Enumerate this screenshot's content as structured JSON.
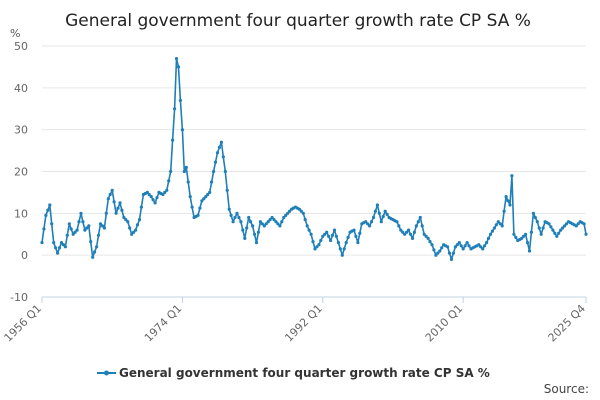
{
  "page": {
    "source_label": "Source:"
  },
  "chart_data": {
    "type": "line",
    "title": "General government four quarter growth rate CP SA %",
    "ylabel": "%",
    "xlabel": "",
    "ylim": [
      -10,
      50
    ],
    "yticks": [
      -10,
      0,
      10,
      20,
      30,
      40,
      50
    ],
    "x_start": "1956 Q1",
    "x_end": "2025 Q4",
    "xtick_labels": [
      "1956 Q1",
      "1974 Q1",
      "1992 Q1",
      "2010 Q1",
      "2025 Q4"
    ],
    "legend_position": "bottom-center",
    "grid": true,
    "color": "#1f7fb8",
    "series": [
      {
        "name": "General government four quarter growth rate CP SA %",
        "anchors": [
          [
            "1956Q1",
            3
          ],
          [
            "1956Q3",
            9.5
          ],
          [
            "1957Q1",
            12
          ],
          [
            "1957Q3",
            3
          ],
          [
            "1958Q1",
            0.5
          ],
          [
            "1958Q3",
            3
          ],
          [
            "1959Q1",
            2
          ],
          [
            "1959Q3",
            7.5
          ],
          [
            "1960Q1",
            5
          ],
          [
            "1960Q3",
            6
          ],
          [
            "1961Q1",
            10
          ],
          [
            "1961Q3",
            6
          ],
          [
            "1962Q1",
            7
          ],
          [
            "1962Q3",
            -0.5
          ],
          [
            "1963Q1",
            2
          ],
          [
            "1963Q3",
            7.5
          ],
          [
            "1964Q1",
            6.5
          ],
          [
            "1964Q3",
            13.5
          ],
          [
            "1965Q1",
            15.5
          ],
          [
            "1965Q3",
            10
          ],
          [
            "1966Q1",
            12.5
          ],
          [
            "1966Q3",
            9
          ],
          [
            "1967Q1",
            8
          ],
          [
            "1967Q3",
            5
          ],
          [
            "1968Q1",
            6
          ],
          [
            "1968Q3",
            8.5
          ],
          [
            "1969Q1",
            14.5
          ],
          [
            "1969Q3",
            15
          ],
          [
            "1970Q1",
            14
          ],
          [
            "1970Q3",
            12.5
          ],
          [
            "1971Q1",
            15
          ],
          [
            "1971Q3",
            14.5
          ],
          [
            "1972Q1",
            15.5
          ],
          [
            "1972Q3",
            20
          ],
          [
            "1973Q1",
            35
          ],
          [
            "1973Q2",
            47
          ],
          [
            "1973Q3",
            45
          ],
          [
            "1973Q4",
            37
          ],
          [
            "1974Q1",
            30
          ],
          [
            "1974Q2",
            20
          ],
          [
            "1974Q3",
            21
          ],
          [
            "1975Q1",
            14
          ],
          [
            "1975Q3",
            9
          ],
          [
            "1976Q1",
            9.5
          ],
          [
            "1976Q3",
            13
          ],
          [
            "1977Q1",
            14
          ],
          [
            "1977Q3",
            15
          ],
          [
            "1978Q1",
            20
          ],
          [
            "1978Q3",
            24.5
          ],
          [
            "1979Q1",
            27
          ],
          [
            "1979Q3",
            20
          ],
          [
            "1980Q1",
            11
          ],
          [
            "1980Q3",
            8
          ],
          [
            "1981Q1",
            10
          ],
          [
            "1981Q3",
            8
          ],
          [
            "1982Q1",
            4
          ],
          [
            "1982Q3",
            9
          ],
          [
            "1983Q1",
            7
          ],
          [
            "1983Q3",
            3
          ],
          [
            "1984Q1",
            8
          ],
          [
            "1984Q3",
            7
          ],
          [
            "1985Q1",
            8
          ],
          [
            "1985Q3",
            9
          ],
          [
            "1986Q1",
            8
          ],
          [
            "1986Q3",
            7
          ],
          [
            "1987Q1",
            9
          ],
          [
            "1987Q3",
            10
          ],
          [
            "1988Q1",
            11
          ],
          [
            "1988Q3",
            11.5
          ],
          [
            "1989Q1",
            11
          ],
          [
            "1989Q3",
            10
          ],
          [
            "1990Q1",
            7
          ],
          [
            "1990Q3",
            5
          ],
          [
            "1991Q1",
            1.5
          ],
          [
            "1991Q3",
            2.5
          ],
          [
            "1992Q1",
            4.5
          ],
          [
            "1992Q3",
            5.5
          ],
          [
            "1993Q1",
            3.5
          ],
          [
            "1993Q3",
            6
          ],
          [
            "1994Q1",
            3
          ],
          [
            "1994Q3",
            0
          ],
          [
            "1995Q1",
            3
          ],
          [
            "1995Q3",
            5.5
          ],
          [
            "1996Q1",
            6
          ],
          [
            "1996Q3",
            3
          ],
          [
            "1997Q1",
            7.5
          ],
          [
            "1997Q3",
            8
          ],
          [
            "1998Q1",
            7
          ],
          [
            "1998Q3",
            9
          ],
          [
            "1999Q1",
            12
          ],
          [
            "1999Q3",
            8
          ],
          [
            "2000Q1",
            10.5
          ],
          [
            "2000Q3",
            9
          ],
          [
            "2001Q1",
            8.5
          ],
          [
            "2001Q3",
            8
          ],
          [
            "2002Q1",
            6
          ],
          [
            "2002Q3",
            5
          ],
          [
            "2003Q1",
            6
          ],
          [
            "2003Q3",
            4
          ],
          [
            "2004Q1",
            7
          ],
          [
            "2004Q3",
            9
          ],
          [
            "2005Q1",
            5
          ],
          [
            "2005Q3",
            4
          ],
          [
            "2006Q1",
            2.5
          ],
          [
            "2006Q3",
            0
          ],
          [
            "2007Q1",
            1
          ],
          [
            "2007Q3",
            2.5
          ],
          [
            "2008Q1",
            2
          ],
          [
            "2008Q3",
            -1
          ],
          [
            "2009Q1",
            2
          ],
          [
            "2009Q3",
            3
          ],
          [
            "2010Q1",
            1.5
          ],
          [
            "2010Q3",
            3
          ],
          [
            "2011Q1",
            1.5
          ],
          [
            "2011Q3",
            2
          ],
          [
            "2012Q1",
            2.5
          ],
          [
            "2012Q3",
            1.5
          ],
          [
            "2013Q1",
            3
          ],
          [
            "2013Q3",
            5
          ],
          [
            "2014Q1",
            6.5
          ],
          [
            "2014Q3",
            8
          ],
          [
            "2015Q1",
            7
          ],
          [
            "2015Q3",
            14
          ],
          [
            "2016Q1",
            12
          ],
          [
            "2016Q2",
            19
          ],
          [
            "2016Q3",
            5
          ],
          [
            "2017Q1",
            3.5
          ],
          [
            "2017Q3",
            4
          ],
          [
            "2018Q1",
            5
          ],
          [
            "2018Q3",
            1
          ],
          [
            "2019Q1",
            10
          ],
          [
            "2019Q3",
            8
          ],
          [
            "2020Q1",
            5
          ],
          [
            "2020Q3",
            8
          ],
          [
            "2021Q1",
            7.5
          ],
          [
            "2021Q3",
            6
          ],
          [
            "2022Q1",
            4.5
          ],
          [
            "2022Q3",
            6
          ],
          [
            "2023Q1",
            7
          ],
          [
            "2023Q3",
            8
          ],
          [
            "2024Q1",
            7.5
          ],
          [
            "2024Q3",
            7
          ],
          [
            "2025Q1",
            8
          ],
          [
            "2025Q3",
            7.5
          ],
          [
            "2025Q4",
            5
          ]
        ]
      }
    ]
  }
}
